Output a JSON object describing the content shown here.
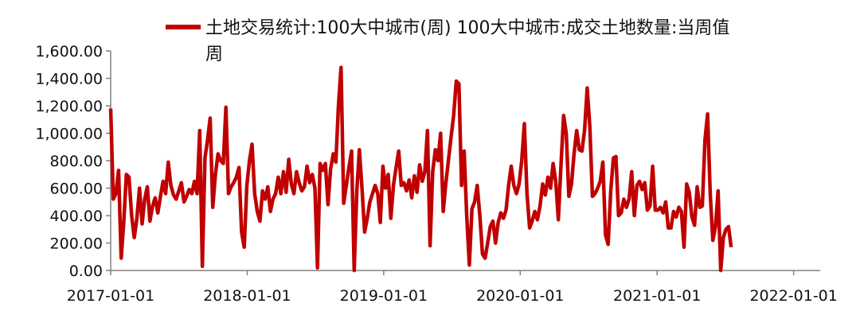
{
  "chart_data": {
    "type": "line",
    "legend": {
      "label_line1": "土地交易统计:100大中城市(周) 100大中城市:成交土地数量:当周值",
      "label_line2": "周",
      "placement": "top"
    },
    "y_ticks": [
      "0.00",
      "200.00",
      "400.00",
      "600.00",
      "800.00",
      "1,000.00",
      "1,200.00",
      "1,400.00",
      "1,600.00"
    ],
    "x_ticks": [
      "2017-01-01",
      "2018-01-01",
      "2019-01-01",
      "2020-01-01",
      "2021-01-01",
      "2022-01-01"
    ],
    "ylim": [
      0,
      1600
    ],
    "xlim": [
      "2017-01-01",
      "2022-03-13"
    ],
    "grid": false,
    "colors": {
      "series": "#C00000",
      "axis": "#808080",
      "text": "#111111"
    },
    "series": [
      {
        "name": "土地交易统计:100大中城市(周) 100大中城市:成交土地数量:当周值",
        "start": "2017-01-01",
        "interval_days": 7,
        "values": [
          1180,
          520,
          560,
          730,
          90,
          350,
          700,
          680,
          400,
          240,
          380,
          600,
          340,
          520,
          610,
          360,
          470,
          530,
          420,
          540,
          650,
          560,
          790,
          620,
          550,
          520,
          580,
          640,
          500,
          540,
          590,
          560,
          650,
          560,
          1020,
          30,
          820,
          950,
          1110,
          460,
          700,
          850,
          800,
          780,
          1190,
          560,
          610,
          640,
          680,
          750,
          280,
          170,
          620,
          800,
          920,
          560,
          430,
          360,
          580,
          520,
          610,
          430,
          520,
          560,
          680,
          560,
          720,
          570,
          810,
          630,
          560,
          720,
          640,
          580,
          610,
          760,
          640,
          700,
          600,
          20,
          780,
          730,
          780,
          480,
          740,
          850,
          790,
          1200,
          1480,
          490,
          620,
          750,
          870,
          0,
          580,
          880,
          600,
          280,
          380,
          500,
          560,
          620,
          560,
          350,
          760,
          600,
          700,
          380,
          620,
          750,
          870,
          620,
          640,
          580,
          660,
          530,
          690,
          570,
          770,
          650,
          720,
          1020,
          180,
          720,
          880,
          800,
          1000,
          430,
          630,
          800,
          970,
          1130,
          1380,
          1360,
          620,
          870,
          400,
          40,
          450,
          500,
          620,
          400,
          120,
          90,
          200,
          320,
          360,
          200,
          350,
          420,
          380,
          440,
          620,
          760,
          620,
          560,
          630,
          800,
          1070,
          560,
          310,
          360,
          430,
          370,
          470,
          630,
          550,
          680,
          600,
          780,
          650,
          370,
          770,
          1130,
          1000,
          540,
          630,
          850,
          1020,
          880,
          870,
          1020,
          1330,
          1050,
          540,
          560,
          600,
          650,
          790,
          260,
          190,
          580,
          820,
          830,
          400,
          420,
          520,
          460,
          520,
          720,
          400,
          620,
          650,
          590,
          640,
          440,
          470,
          760,
          440,
          440,
          460,
          420,
          500,
          310,
          310,
          430,
          390,
          460,
          430,
          170,
          630,
          570,
          390,
          330,
          610,
          460,
          470,
          950,
          1140,
          560,
          220,
          320,
          580,
          0,
          240,
          300,
          320,
          170
        ]
      }
    ]
  }
}
